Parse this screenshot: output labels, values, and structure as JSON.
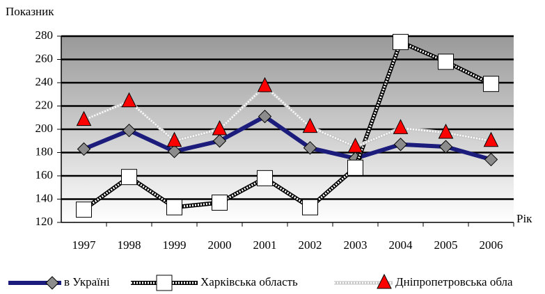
{
  "chart_data": {
    "type": "line",
    "y_label": "Показник",
    "x_label": "Рік",
    "categories": [
      "1997",
      "1998",
      "1999",
      "2000",
      "2001",
      "2002",
      "2003",
      "2004",
      "2005",
      "2006"
    ],
    "series": [
      {
        "name": "в Україні",
        "color": "#1c1c7c",
        "marker": "diamond",
        "marker_color": "#8c8c8c",
        "values": [
          183,
          199,
          181,
          190,
          211,
          184,
          175,
          187,
          185,
          174
        ]
      },
      {
        "name": "Харківська область",
        "color": "#000000",
        "marker": "square",
        "marker_color": "#ffffff",
        "values": [
          131,
          159,
          133,
          137,
          158,
          133,
          167,
          275,
          258,
          239
        ]
      },
      {
        "name": "Дніпропетровська обла",
        "color": "#c8c8c8",
        "marker": "triangle",
        "marker_color": "#ff0000",
        "values": [
          208,
          224,
          190,
          200,
          237,
          202,
          185,
          201,
          197,
          190
        ]
      }
    ],
    "ylim": [
      120,
      280
    ],
    "yticks": [
      120,
      140,
      160,
      180,
      200,
      220,
      240,
      260,
      280
    ],
    "grid": true
  }
}
